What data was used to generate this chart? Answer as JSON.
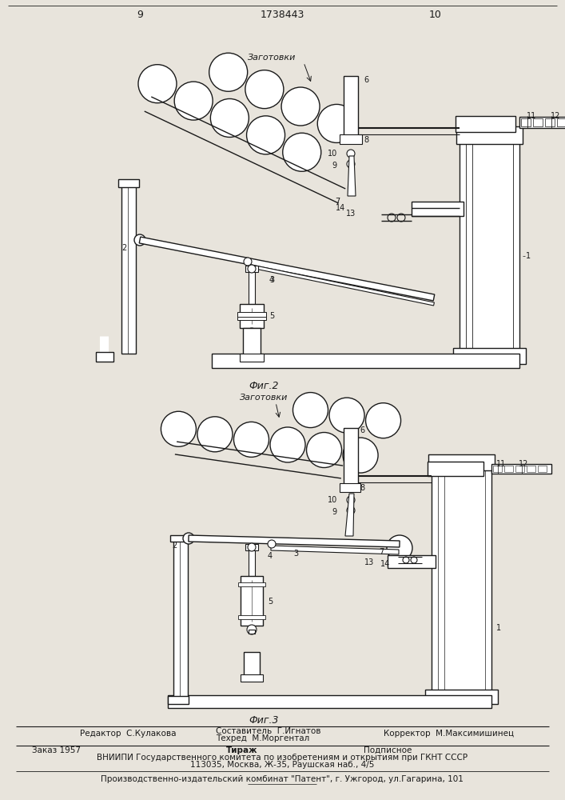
{
  "page_number_left": "9",
  "page_number_right": "10",
  "patent_number": "1738443",
  "fig2_label": "Фиг.2",
  "fig3_label": "Фиг.3",
  "zagotovki": "Заготовки",
  "editor_line1": "Редактор  С.Кулакова",
  "composer_line1": "Составитель  Г.Игнатов",
  "composer_line2": "Техред  М.Моргентал",
  "corrector_line": "Корректор  М.Максимишинец",
  "zakaz": "Заказ 1957",
  "tirazh": "Тираж",
  "podpisnoe": "Подписное",
  "vniipи_line": "ВНИИПИ Государственного комитета по изобретениям и открытиям при ГКНТ СССР",
  "address_line": "113035, Москва, Ж-35, Раушская наб., 4/5",
  "patent_line": "Производственно-издательский комбинат \"Патент\", г. Ужгород, ул.Гагарина, 101",
  "bg_color": "#e8e4dc",
  "white": "#ffffff",
  "line_color": "#1a1a1a"
}
